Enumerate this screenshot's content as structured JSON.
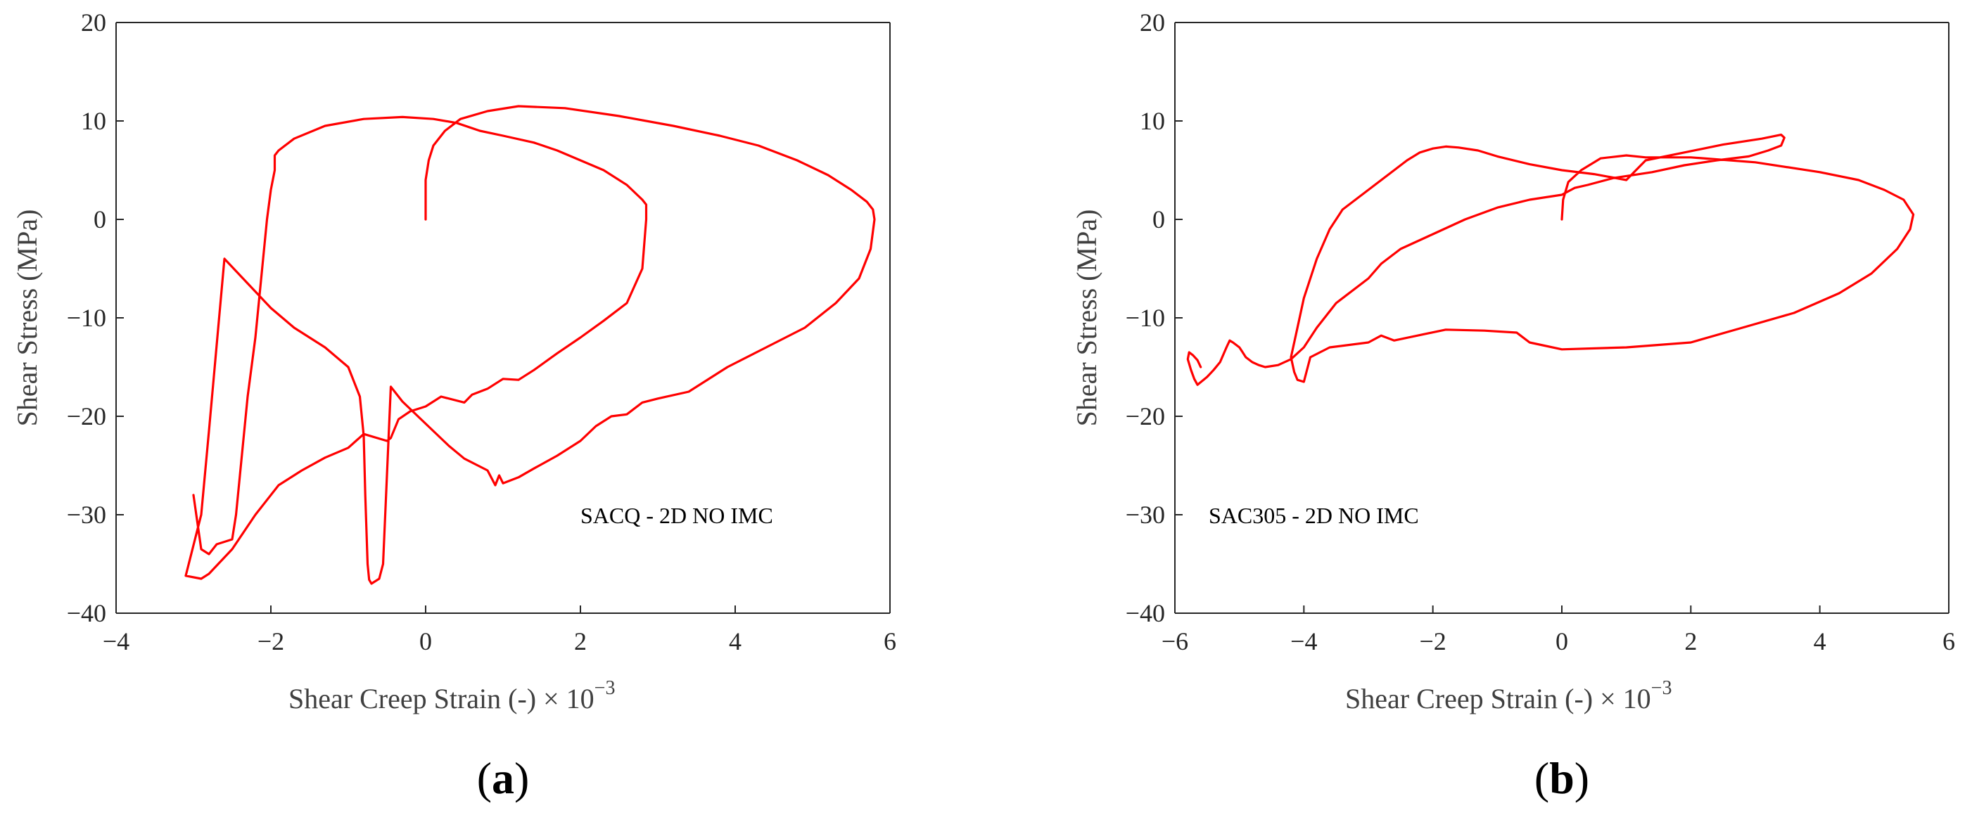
{
  "figure": {
    "panels": [
      {
        "label_open": "(",
        "label_letter": "a",
        "label_close": ")"
      },
      {
        "label_open": "(",
        "label_letter": "b",
        "label_close": ")"
      }
    ]
  },
  "colors": {
    "curve": "#ff0000",
    "axis": "#262626",
    "background": "#ffffff"
  },
  "chart_data": [
    {
      "type": "line",
      "title": "",
      "annotation": "SACQ - 2D NO IMC",
      "xlabel": "Shear Creep Strain (-)",
      "xlabel_multiplier": "× 10",
      "xlabel_exponent": "−3",
      "ylabel": "Shear Stress (MPa)",
      "xlim": [
        -4,
        6
      ],
      "ylim": [
        -40,
        20
      ],
      "xticks": [
        "−4",
        "−2",
        "0",
        "2",
        "4",
        "6"
      ],
      "yticks": [
        "−40",
        "−30",
        "−20",
        "−10",
        "0",
        "10",
        "20"
      ],
      "grid": false,
      "series": [
        {
          "name": "hysteresis",
          "color": "#ff0000",
          "x": [
            0.0,
            0.0,
            0.04,
            0.1,
            0.25,
            0.45,
            0.8,
            1.2,
            1.8,
            2.5,
            3.2,
            3.8,
            4.3,
            4.8,
            5.2,
            5.5,
            5.7,
            5.78,
            5.8,
            5.75,
            5.6,
            5.3,
            4.9,
            4.4,
            3.9,
            3.4,
            3.0,
            2.8,
            2.6,
            2.4,
            2.2,
            2.0,
            1.7,
            1.4,
            1.2,
            1.0,
            0.95,
            0.9,
            0.8,
            0.5,
            0.3,
            0.1,
            -0.1,
            -0.3,
            -0.45,
            -0.55,
            -0.6,
            -0.7,
            -0.73,
            -0.75,
            -0.78,
            -0.8,
            -0.85,
            -1.0,
            -1.3,
            -1.7,
            -2.0,
            -2.3,
            -2.6,
            -2.8,
            -2.9,
            -3.1,
            -2.9,
            -2.8,
            -2.5,
            -2.2,
            -1.9,
            -1.6,
            -1.3,
            -1.0,
            -0.8,
            -0.5,
            -0.45,
            -0.35,
            -0.2,
            0.0,
            0.2,
            0.5,
            0.6,
            0.8,
            1.0,
            1.2,
            1.4,
            1.7,
            2.0,
            2.3,
            2.6,
            2.8,
            2.85,
            2.85,
            2.8,
            2.6,
            2.3,
            2.0,
            1.7,
            1.4,
            1.0,
            0.7,
            0.4,
            0.1,
            -0.3,
            -0.8,
            -1.3,
            -1.7,
            -1.9,
            -1.95,
            -1.95,
            -2.0,
            -2.05,
            -2.1,
            -2.15,
            -2.2,
            -2.25,
            -2.3,
            -2.35,
            -2.4,
            -2.45,
            -2.5,
            -2.7,
            -2.8,
            -2.9,
            -3.0
          ],
          "y": [
            0.0,
            4.0,
            6.0,
            7.5,
            9.0,
            10.2,
            11.0,
            11.5,
            11.3,
            10.5,
            9.5,
            8.5,
            7.5,
            6.0,
            4.5,
            3.0,
            1.8,
            1.0,
            0.0,
            -3.0,
            -6.0,
            -8.5,
            -11.0,
            -13.0,
            -15.0,
            -17.5,
            -18.2,
            -18.6,
            -19.8,
            -20.0,
            -21.0,
            -22.5,
            -24.0,
            -25.3,
            -26.2,
            -26.8,
            -26.0,
            -27.0,
            -25.5,
            -24.3,
            -23.0,
            -21.5,
            -20.0,
            -18.5,
            -17.0,
            -35.0,
            -36.5,
            -37.0,
            -36.6,
            -35.0,
            -28.0,
            -22.0,
            -18.0,
            -15.0,
            -13.0,
            -11.0,
            -9.0,
            -6.5,
            -4.0,
            -21.5,
            -30.0,
            -36.2,
            -36.5,
            -36.0,
            -33.5,
            -30.0,
            -27.0,
            -25.5,
            -24.2,
            -23.2,
            -21.8,
            -22.5,
            -22.2,
            -20.3,
            -19.5,
            -19.0,
            -18.0,
            -18.6,
            -17.8,
            -17.2,
            -16.2,
            -16.3,
            -15.3,
            -13.6,
            -12.0,
            -10.3,
            -8.5,
            -5.0,
            0.0,
            1.5,
            2.0,
            3.5,
            5.0,
            6.0,
            7.0,
            7.8,
            8.5,
            9.0,
            9.8,
            10.2,
            10.4,
            10.2,
            9.5,
            8.2,
            7.0,
            6.5,
            5.0,
            3.0,
            0.0,
            -4.0,
            -8.0,
            -12.0,
            -15.0,
            -18.0,
            -22.0,
            -26.0,
            -30.0,
            -32.5,
            -33.0,
            -34.0,
            -33.5,
            -28.0
          ]
        }
      ]
    },
    {
      "type": "line",
      "title": "",
      "annotation": "SAC305 - 2D NO IMC",
      "xlabel": "Shear Creep Strain (-)",
      "xlabel_multiplier": "× 10",
      "xlabel_exponent": "−3",
      "ylabel": "Shear Stress (MPa)",
      "xlim": [
        -6,
        6
      ],
      "ylim": [
        -40,
        20
      ],
      "xticks": [
        "−6",
        "−4",
        "−2",
        "0",
        "2",
        "4",
        "6"
      ],
      "yticks": [
        "−40",
        "−30",
        "−20",
        "−10",
        "0",
        "10",
        "20"
      ],
      "grid": false,
      "series": [
        {
          "name": "hysteresis",
          "color": "#ff0000",
          "x": [
            0.0,
            0.02,
            0.1,
            0.3,
            0.6,
            1.0,
            1.3,
            2.0,
            3.0,
            4.0,
            4.6,
            5.0,
            5.3,
            5.4,
            5.45,
            5.4,
            5.2,
            4.8,
            4.3,
            3.6,
            2.8,
            2.0,
            1.0,
            0.0,
            -0.5,
            -0.7,
            -1.2,
            -1.8,
            -2.6,
            -2.8,
            -3.0,
            -3.6,
            -3.9,
            -4.0,
            -4.1,
            -4.15,
            -4.2,
            -4.1,
            -4.0,
            -3.8,
            -3.6,
            -3.4,
            -3.0,
            -2.6,
            -2.4,
            -2.2,
            -2.0,
            -1.8,
            -1.6,
            -1.3,
            -1.0,
            -0.5,
            0.0,
            0.5,
            1.0,
            1.15,
            1.3,
            1.9,
            2.5,
            3.1,
            3.4,
            3.45,
            3.4,
            3.2,
            2.9,
            2.4,
            1.9,
            1.4,
            0.8,
            0.4,
            0.2,
            0.0,
            -0.5,
            -1.0,
            -1.5,
            -2.0,
            -2.5,
            -2.8,
            -3.0,
            -3.5,
            -3.8,
            -4.0,
            -4.2,
            -4.4,
            -4.6,
            -4.7,
            -4.8,
            -4.9,
            -4.95,
            -5.0,
            -5.1,
            -5.15,
            -5.2,
            -5.3,
            -5.4,
            -5.5,
            -5.65,
            -5.7,
            -5.75,
            -5.8,
            -5.78,
            -5.72,
            -5.65,
            -5.6
          ],
          "y": [
            0.0,
            2.0,
            3.8,
            5.0,
            6.2,
            6.5,
            6.3,
            6.3,
            5.8,
            4.8,
            4.0,
            3.0,
            2.0,
            1.0,
            0.5,
            -1.0,
            -3.0,
            -5.5,
            -7.5,
            -9.5,
            -11.0,
            -12.5,
            -13.0,
            -13.2,
            -12.5,
            -11.5,
            -11.3,
            -11.2,
            -12.3,
            -11.8,
            -12.5,
            -13.0,
            -14.0,
            -16.5,
            -16.3,
            -15.5,
            -14.0,
            -11.0,
            -8.0,
            -4.0,
            -1.0,
            1.0,
            3.0,
            5.0,
            6.0,
            6.8,
            7.2,
            7.4,
            7.3,
            7.0,
            6.4,
            5.6,
            5.0,
            4.6,
            4.0,
            5.0,
            6.0,
            6.8,
            7.6,
            8.2,
            8.6,
            8.3,
            7.5,
            7.0,
            6.4,
            6.0,
            5.5,
            4.8,
            4.2,
            3.5,
            3.2,
            2.5,
            2.0,
            1.2,
            0.0,
            -1.5,
            -3.0,
            -4.5,
            -6.0,
            -8.5,
            -11.0,
            -13.0,
            -14.2,
            -14.8,
            -15.0,
            -14.8,
            -14.5,
            -14.0,
            -13.5,
            -13.0,
            -12.5,
            -12.3,
            -13.0,
            -14.5,
            -15.3,
            -16.0,
            -16.8,
            -16.2,
            -15.3,
            -14.2,
            -13.5,
            -13.8,
            -14.3,
            -15.0
          ]
        }
      ]
    }
  ]
}
